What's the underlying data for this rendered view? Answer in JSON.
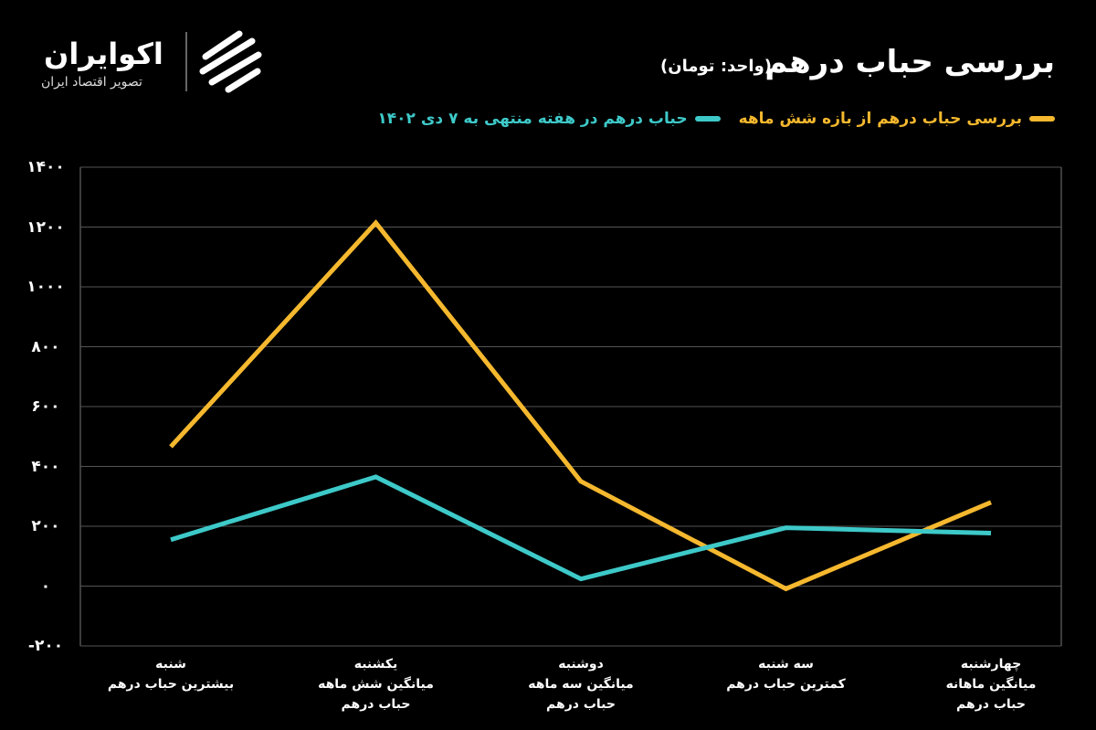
{
  "logo": {
    "name": "اکوایران",
    "tagline": "تصویر اقتصاد ایران"
  },
  "chart_data": {
    "type": "line",
    "title": "بررسی  حباب درهم",
    "subtitle": "(واحد: تومان)",
    "categories": [
      "شنبه\nبیشترین حباب درهم",
      "یکشنبه\nمیانگین شش ماهه\nحباب درهم",
      "دوشنبه\nمیانگین سه ماهه\nحباب درهم",
      "سه شنبه\nکمترین حباب درهم",
      "چهارشنبه\nمیانگین ماهانه\nحباب درهم"
    ],
    "series": [
      {
        "name": "بررسی حباب درهم از بازه شش ماهه",
        "color": "#f5b82e",
        "values": [
          466,
          1214,
          350,
          -9,
          280
        ]
      },
      {
        "name": "حباب درهم در هفته منتهی به ۷ دی ۱۴۰۲",
        "color": "#3ec9c9",
        "values": [
          155,
          365,
          24,
          195,
          177
        ]
      }
    ],
    "ylim": [
      -200,
      1400
    ],
    "yticks": [
      {
        "value": -200,
        "label": "-۲۰۰"
      },
      {
        "value": 0,
        "label": "۰"
      },
      {
        "value": 200,
        "label": "۲۰۰"
      },
      {
        "value": 400,
        "label": "۴۰۰"
      },
      {
        "value": 600,
        "label": "۶۰۰"
      },
      {
        "value": 800,
        "label": "۸۰۰"
      },
      {
        "value": 1000,
        "label": "۱۰۰۰"
      },
      {
        "value": 1200,
        "label": "۱۲۰۰"
      },
      {
        "value": 1400,
        "label": "۱۴۰۰"
      }
    ],
    "grid": true
  }
}
